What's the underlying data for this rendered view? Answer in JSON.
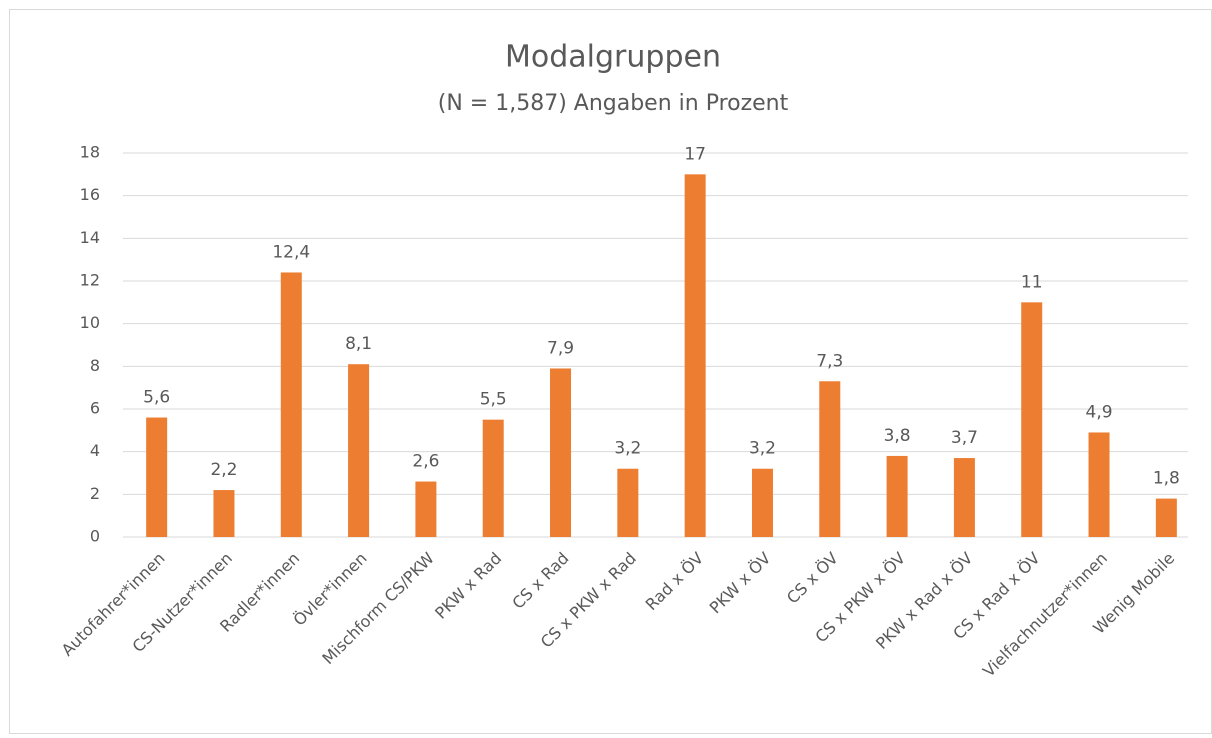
{
  "chart_data": {
    "type": "bar",
    "title": "Modalgruppen",
    "subtitle": "(N = 1,587) Angaben in Prozent",
    "categories": [
      "Autofahrer*innen",
      "CS-Nutzer*innen",
      "Radler*innen",
      "Övler*innen",
      "Mischform CS/PKW",
      "PKW x Rad",
      "CS x Rad",
      "CS x PKW x Rad",
      "Rad x ÖV",
      "PKW x ÖV",
      "CS x ÖV",
      "CS x PKW x ÖV",
      "PKW x Rad x ÖV",
      "CS x Rad x ÖV",
      "Vielfachnutzer*innen",
      "Wenig Mobile"
    ],
    "values": [
      5.6,
      2.2,
      12.4,
      8.1,
      2.6,
      5.5,
      7.9,
      3.2,
      17,
      3.2,
      7.3,
      3.8,
      3.7,
      11,
      4.9,
      1.8
    ],
    "value_labels": [
      "5,6",
      "2,2",
      "12,4",
      "8,1",
      "2,6",
      "5,5",
      "7,9",
      "3,2",
      "17",
      "3,2",
      "7,3",
      "3,8",
      "3,7",
      "11",
      "4,9",
      "1,8"
    ],
    "color": "#ed7d31",
    "ylim": [
      0,
      18
    ],
    "yticks": [
      0,
      2,
      4,
      6,
      8,
      10,
      12,
      14,
      16,
      18
    ],
    "grid": true
  }
}
